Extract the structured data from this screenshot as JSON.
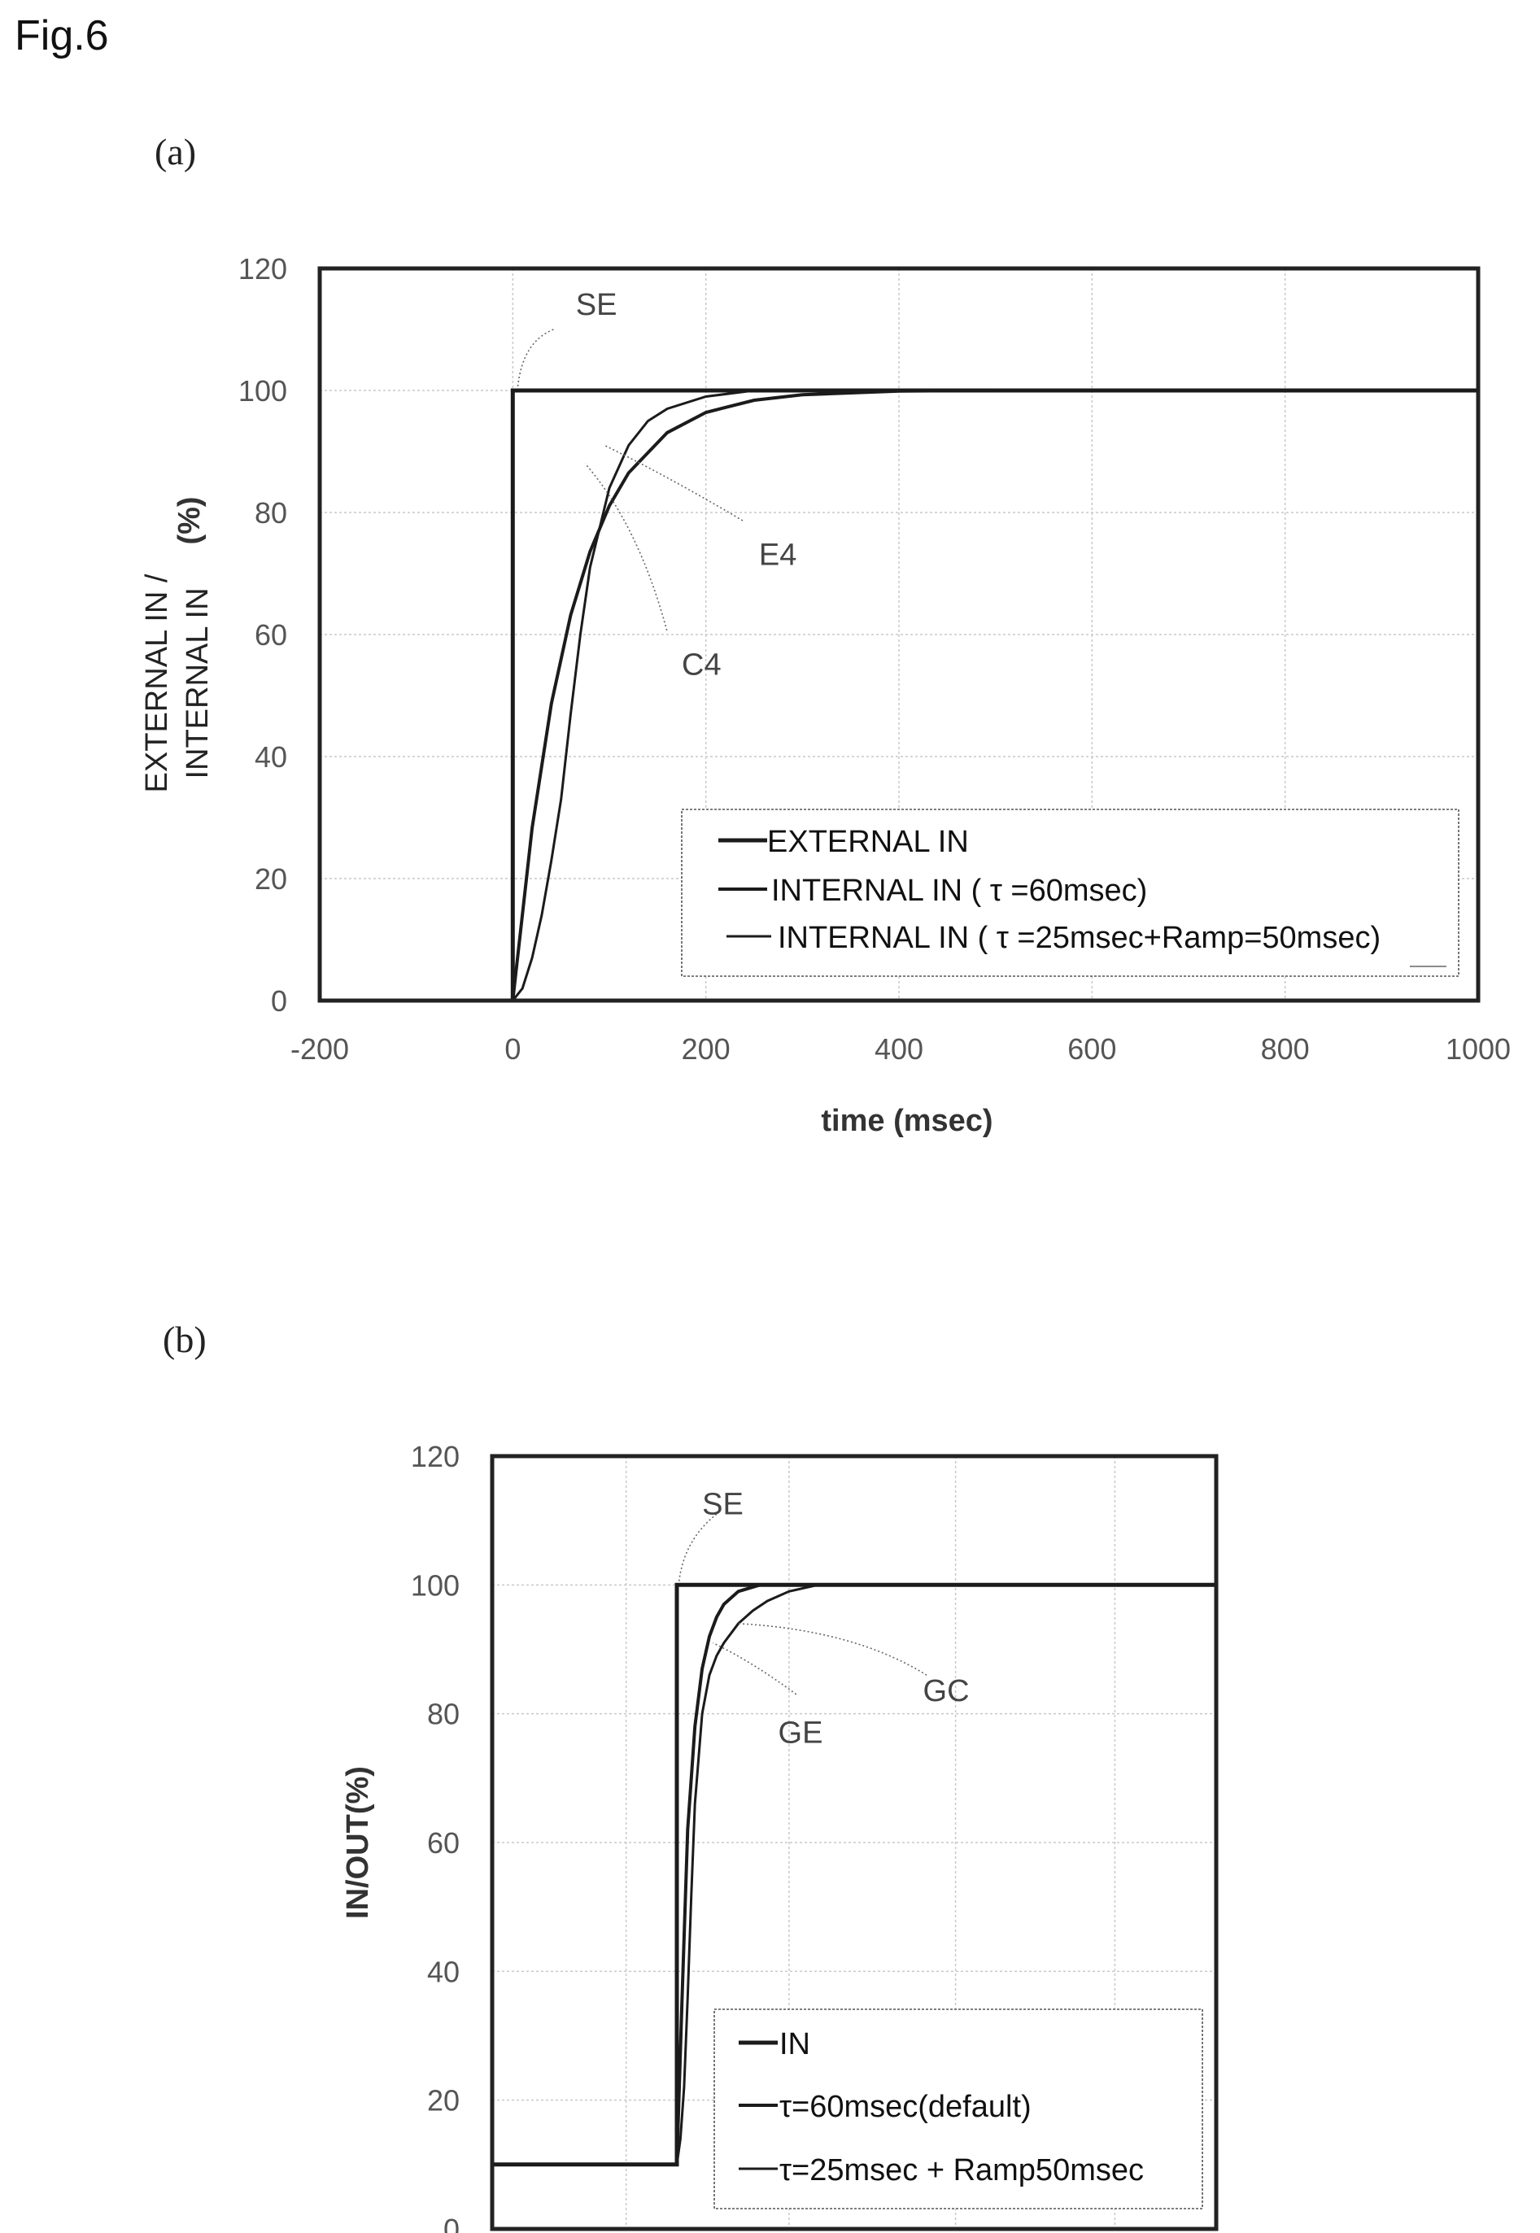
{
  "figure_title": "Fig.6",
  "chart_data": [
    {
      "panel": "(a)",
      "type": "line",
      "title": "",
      "xlabel": "time (msec)",
      "ylabel_lines": [
        "EXTERNAL IN /",
        "INTERNAL IN"
      ],
      "ylabel_unit": "(%)",
      "xlim": [
        -200,
        1000
      ],
      "ylim": [
        0,
        120
      ],
      "xticks": [
        -200,
        0,
        200,
        400,
        600,
        800,
        1000
      ],
      "yticks": [
        0,
        20,
        40,
        60,
        80,
        100,
        120
      ],
      "xtick_labels": [
        "-200",
        "0",
        "200",
        "400",
        "600",
        "800",
        "1000"
      ],
      "ytick_labels": [
        "0",
        "20",
        "40",
        "60",
        "80",
        "100",
        "120"
      ],
      "grid": true,
      "legend_position": "lower-right",
      "series": [
        {
          "name": "EXTERNAL IN",
          "x": [
            -200,
            0,
            0,
            1000
          ],
          "y": [
            0,
            0,
            100,
            100
          ]
        },
        {
          "name": "INTERNAL IN ( τ =60msec)",
          "x": [
            0,
            20,
            40,
            60,
            80,
            100,
            120,
            160,
            200,
            250,
            300,
            400,
            500,
            600,
            800,
            1000
          ],
          "y": [
            0,
            28.3,
            48.7,
            63.2,
            73.6,
            81.1,
            86.5,
            93.1,
            96.4,
            98.4,
            99.3,
            99.9,
            100,
            100,
            100,
            100
          ]
        },
        {
          "name": "INTERNAL IN ( τ =25msec+Ramp=50msec)",
          "x": [
            0,
            10,
            20,
            30,
            40,
            50,
            60,
            70,
            80,
            100,
            120,
            140,
            160,
            200,
            250,
            300,
            400,
            600,
            800,
            1000
          ],
          "y": [
            0,
            2,
            7,
            14,
            23,
            33,
            47,
            60,
            71,
            84,
            91,
            95,
            97,
            99,
            100,
            100,
            100,
            100,
            100,
            100
          ]
        }
      ],
      "annotations": [
        {
          "text": "SE",
          "x": 40,
          "y": 114
        },
        {
          "text": "E4",
          "x": 255,
          "y": 73
        },
        {
          "text": "C4",
          "x": 175,
          "y": 55
        }
      ]
    },
    {
      "panel": "(b)",
      "type": "line",
      "title": "",
      "xlabel": "",
      "ylabel": "IN/OUT(%)",
      "ylim": [
        0,
        120
      ],
      "yticks": [
        0,
        20,
        40,
        60,
        80,
        100,
        120
      ],
      "ytick_labels": [
        "0",
        "20",
        "40",
        "60",
        "80",
        "100",
        "120"
      ],
      "grid": true,
      "legend_position": "lower-right",
      "series": [
        {
          "name": "IN",
          "x": [
            0,
            0.255,
            0.255,
            1
          ],
          "y": [
            10,
            10,
            100,
            100
          ]
        },
        {
          "name": "τ=60msec(default)",
          "x": [
            0.255,
            0.262,
            0.27,
            0.28,
            0.29,
            0.3,
            0.31,
            0.32,
            0.34,
            0.37,
            0.42,
            0.5,
            1
          ],
          "y": [
            10,
            35,
            62,
            78,
            87,
            92,
            95,
            97,
            99,
            100,
            100,
            100,
            100
          ]
        },
        {
          "name": "τ=25msec + Ramp50msec",
          "x": [
            0.255,
            0.26,
            0.265,
            0.27,
            0.275,
            0.28,
            0.29,
            0.3,
            0.31,
            0.32,
            0.34,
            0.36,
            0.38,
            0.41,
            0.45,
            0.5,
            1
          ],
          "y": [
            10,
            14,
            22,
            36,
            52,
            66,
            80,
            86,
            89,
            91,
            94,
            96,
            97.5,
            99,
            100,
            100,
            100
          ]
        }
      ],
      "annotations": [
        {
          "text": "SE"
        },
        {
          "text": "GE"
        },
        {
          "text": "GC"
        }
      ]
    }
  ]
}
